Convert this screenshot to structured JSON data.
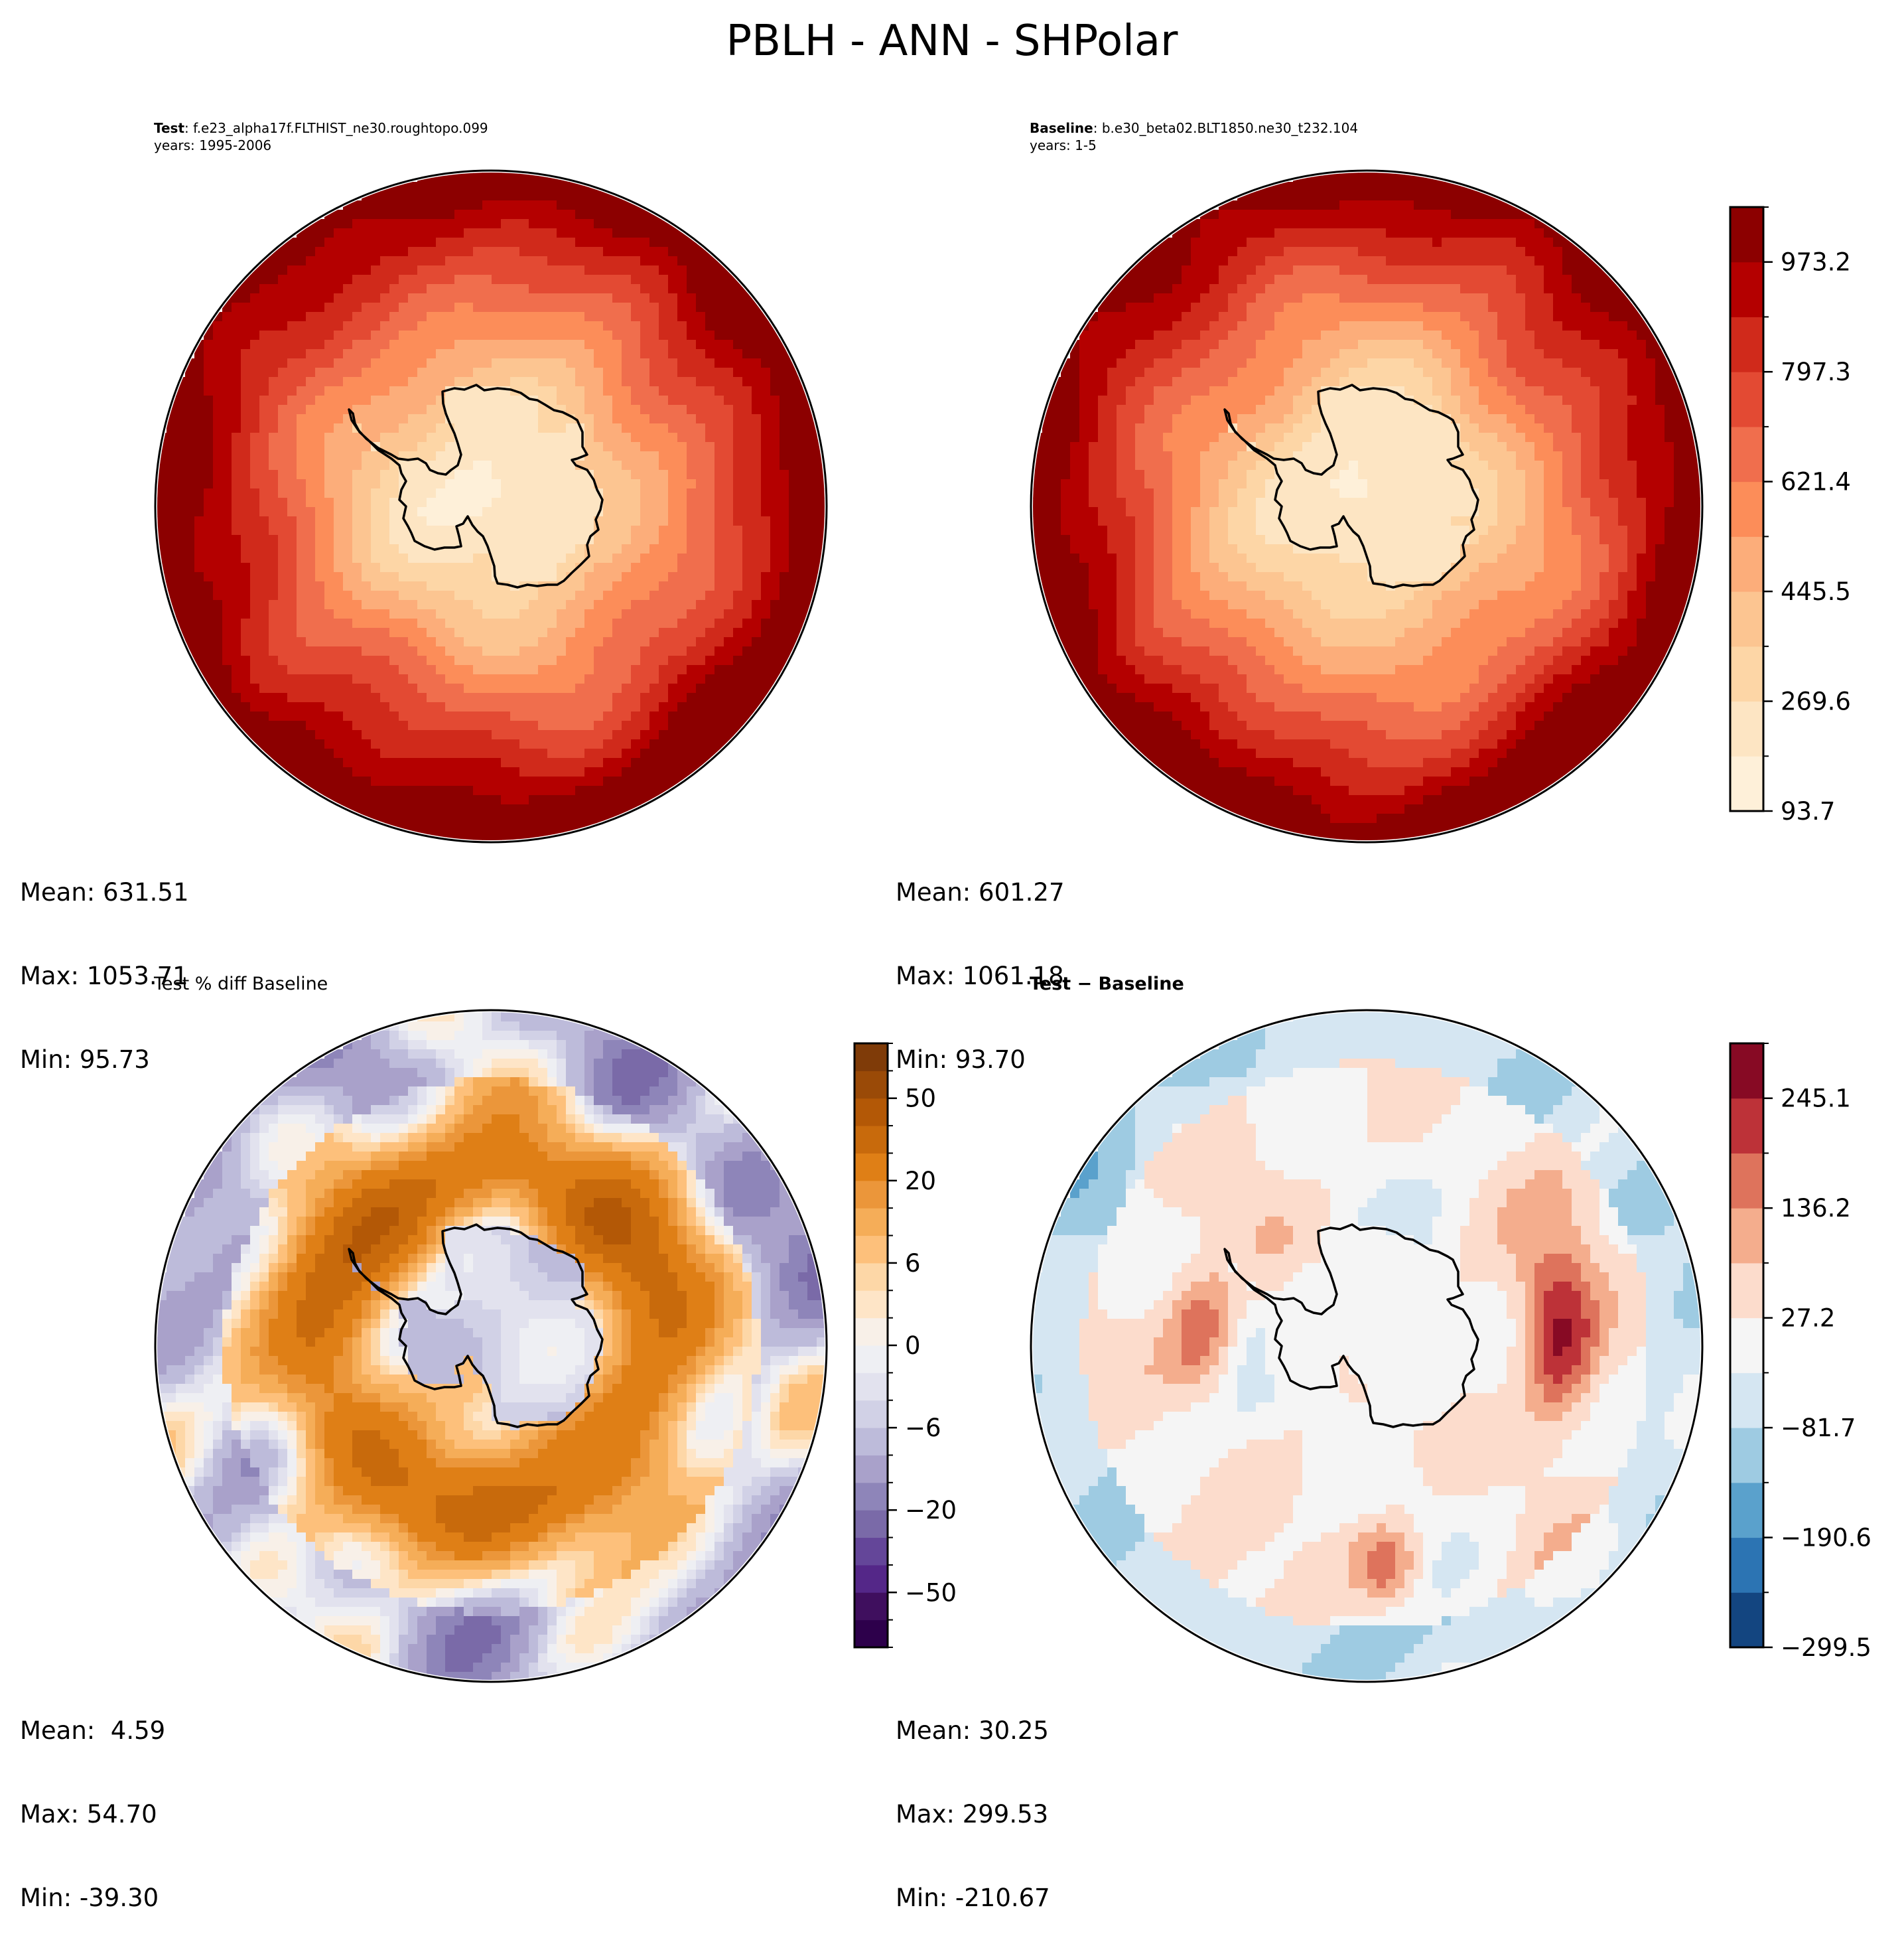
{
  "figure": {
    "title": "PBLH - ANN - SHPolar"
  },
  "chart_data": [
    {
      "type": "heatmap",
      "panel": "test",
      "projection": "south-polar-stereographic",
      "subtitle_bold": "Test",
      "subtitle_rest": ": f.e23_alpha17f.FLTHIST_ne30.roughtopo.099",
      "years": "years: 1995-2006",
      "stats": {
        "mean": "Mean: 631.51",
        "max": "Max: 1053.71",
        "min": "Min: 95.73"
      },
      "colormap": "OrRd",
      "shares_colorbar_with": "baseline",
      "description": "Low PBLH (~100-450) over Antarctic continent, increasing outward to ~800-1050 over Southern Ocean; local maxima near east and south-east rim."
    },
    {
      "type": "heatmap",
      "panel": "baseline",
      "projection": "south-polar-stereographic",
      "subtitle_bold": "Baseline",
      "subtitle_rest": ": b.e30_beta02.BLT1850.ne30_t232.104",
      "years": "years: 1-5",
      "stats": {
        "mean": "Mean: 601.27",
        "max": "Max: 1061.18",
        "min": "Min: 93.70"
      },
      "colormap": "OrRd",
      "colorbar": {
        "levels": [
          93.7,
          181.65,
          269.6,
          357.55,
          445.5,
          533.45,
          621.4,
          709.35,
          797.3,
          885.25,
          973.2,
          1061.15
        ],
        "tick_labels": [
          "93.7",
          "269.6",
          "445.5",
          "621.4",
          "797.3",
          "973.2"
        ],
        "colors": [
          "#fef0d9",
          "#fde5c3",
          "#fdd6a6",
          "#fcc591",
          "#fcad7a",
          "#fc8d59",
          "#f06e4d",
          "#e34a33",
          "#d02a1b",
          "#b40000",
          "#8c0000"
        ]
      },
      "description": "Similar pattern to Test with slightly lower mean."
    },
    {
      "type": "heatmap",
      "panel": "percent-diff",
      "projection": "south-polar-stereographic",
      "subtitle": "Test % diff Baseline",
      "stats": {
        "mean": "Mean:  4.59",
        "max": "Max: 54.70",
        "min": "Min: -39.30"
      },
      "colormap": "PuOr_r",
      "colorbar": {
        "levels": [
          -70,
          -60,
          -50,
          -40,
          -30,
          -20,
          -15,
          -10,
          -6,
          -4,
          -2,
          0,
          2,
          4,
          6,
          10,
          15,
          20,
          30,
          40,
          50,
          60,
          70
        ],
        "tick_labels": [
          "−50",
          "−20",
          "−6",
          "0",
          "6",
          "20",
          "50"
        ],
        "tick_values": [
          -50,
          -20,
          -6,
          0,
          6,
          20,
          50
        ],
        "colors": [
          "#2d004b",
          "#3f0f5e",
          "#542788",
          "#644699",
          "#7a6aa8",
          "#8e85b9",
          "#a9a1ca",
          "#bdbbda",
          "#d1d1e6",
          "#e2e2ee",
          "#eeeff3",
          "#f8f0e8",
          "#fee5c7",
          "#fdd7a7",
          "#fdc07b",
          "#f5ad58",
          "#eb963a",
          "#df7f16",
          "#c86a0c",
          "#b35806",
          "#9a4a07",
          "#7f3b08"
        ]
      },
      "description": "Positive % differences (orange) ring the continent over the Southern Ocean; negative (purple) over interior Antarctica and outer mid-latitude regions."
    },
    {
      "type": "heatmap",
      "panel": "difference",
      "projection": "south-polar-stereographic",
      "subtitle_bold": "Test − Baseline",
      "stats": {
        "mean": "Mean: 30.25",
        "max": "Max: 299.53",
        "min": "Min: -210.67"
      },
      "colormap": "RdBu_r",
      "colorbar": {
        "levels": [
          -299.5,
          -245.05,
          -190.6,
          -136.15,
          -81.7,
          -27.25,
          27.2,
          81.65,
          136.2,
          190.65,
          245.1,
          299.55
        ],
        "tick_labels": [
          "−299.5",
          "−190.6",
          "−81.7",
          "27.2",
          "136.2",
          "245.1"
        ],
        "tick_values": [
          -299.5,
          -190.6,
          -81.7,
          27.2,
          136.2,
          245.1
        ],
        "colors": [
          "#134580",
          "#2c74b3",
          "#5aa1cc",
          "#9ecbe2",
          "#d5e6f2",
          "#f5f5f5",
          "#fcdccc",
          "#f4ad8d",
          "#de735c",
          "#bd3238",
          "#870a24"
        ]
      },
      "description": "Near-zero over Antarctica; strong positive (up to ~300) east of the continent and south-west; weak negative (blue) at outer rim."
    }
  ]
}
